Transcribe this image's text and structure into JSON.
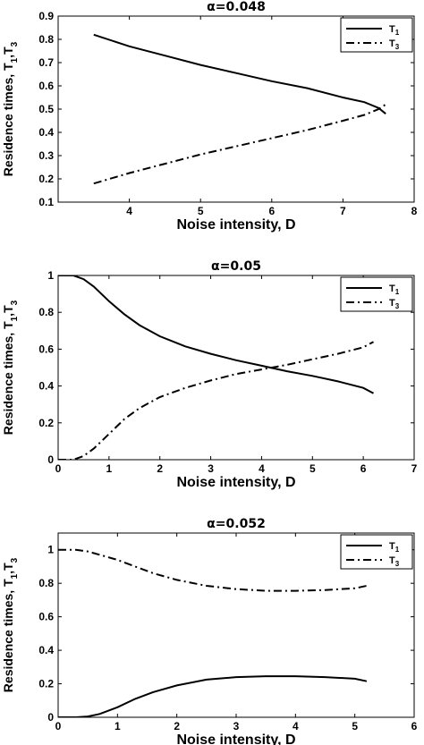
{
  "chart_data": [
    {
      "type": "line",
      "title": "α=0.048",
      "xlabel": "Noise intensity, D",
      "ylabel": "Residence times, T",
      "ylabel_subscripts": [
        "1",
        "3"
      ],
      "xlim": [
        3,
        8
      ],
      "ylim": [
        0.1,
        0.9
      ],
      "xticks": [
        4,
        5,
        6,
        7,
        8
      ],
      "yticks": [
        0.1,
        0.2,
        0.3,
        0.4,
        0.5,
        0.6,
        0.7,
        0.8,
        0.9
      ],
      "ytick_labels": [
        "0.1",
        "0.2",
        "0.3",
        "0.4",
        "0.5",
        "0.6",
        "0.7",
        "0.8",
        "0.9"
      ],
      "legend_position": "top-right",
      "series": [
        {
          "name": "T",
          "sub": "1",
          "style": "solid",
          "x": [
            3.5,
            4.0,
            4.5,
            5.0,
            5.5,
            6.0,
            6.5,
            7.0,
            7.3,
            7.5,
            7.6
          ],
          "y": [
            0.82,
            0.77,
            0.73,
            0.69,
            0.655,
            0.62,
            0.59,
            0.55,
            0.53,
            0.505,
            0.48
          ]
        },
        {
          "name": "T",
          "sub": "3",
          "style": "dashdot",
          "x": [
            3.5,
            4.0,
            4.5,
            5.0,
            5.5,
            6.0,
            6.5,
            7.0,
            7.3,
            7.5,
            7.6
          ],
          "y": [
            0.18,
            0.225,
            0.265,
            0.305,
            0.34,
            0.375,
            0.41,
            0.45,
            0.475,
            0.5,
            0.52
          ]
        }
      ]
    },
    {
      "type": "line",
      "title": "α=0.05",
      "xlabel": "Noise intensity, D",
      "ylabel": "Residence times, T",
      "ylabel_subscripts": [
        "1",
        "3"
      ],
      "xlim": [
        0,
        7
      ],
      "ylim": [
        0,
        1
      ],
      "xticks": [
        0,
        1,
        2,
        3,
        4,
        5,
        6,
        7
      ],
      "yticks": [
        0,
        0.2,
        0.4,
        0.6,
        0.8,
        1
      ],
      "ytick_labels": [
        "0",
        "0.2",
        "0.4",
        "0.6",
        "0.8",
        "1"
      ],
      "legend_position": "top-right",
      "series": [
        {
          "name": "T",
          "sub": "1",
          "style": "solid",
          "x": [
            0.0,
            0.3,
            0.5,
            0.7,
            1.0,
            1.3,
            1.6,
            2.0,
            2.5,
            3.0,
            3.5,
            4.0,
            4.5,
            5.0,
            5.5,
            6.0,
            6.2
          ],
          "y": [
            1.0,
            1.0,
            0.98,
            0.94,
            0.86,
            0.79,
            0.73,
            0.67,
            0.615,
            0.575,
            0.54,
            0.51,
            0.48,
            0.455,
            0.425,
            0.39,
            0.36
          ]
        },
        {
          "name": "T",
          "sub": "3",
          "style": "dashdot",
          "x": [
            0.0,
            0.3,
            0.5,
            0.7,
            1.0,
            1.3,
            1.6,
            2.0,
            2.5,
            3.0,
            3.5,
            4.0,
            4.5,
            5.0,
            5.5,
            6.0,
            6.2
          ],
          "y": [
            0.0,
            0.0,
            0.02,
            0.06,
            0.14,
            0.22,
            0.28,
            0.34,
            0.39,
            0.43,
            0.465,
            0.49,
            0.515,
            0.545,
            0.575,
            0.61,
            0.64
          ]
        }
      ]
    },
    {
      "type": "line",
      "title": "α=0.052",
      "xlabel": "Noise intensity, D",
      "ylabel": "Residence times, T",
      "ylabel_subscripts": [
        "1",
        "3"
      ],
      "xlim": [
        0,
        6
      ],
      "ylim": [
        0,
        1.1
      ],
      "xticks": [
        0,
        1,
        2,
        3,
        4,
        5,
        6
      ],
      "yticks": [
        0,
        0.2,
        0.4,
        0.6,
        0.8,
        1
      ],
      "ytick_labels": [
        "0",
        "0.2",
        "0.4",
        "0.6",
        "0.8",
        "1"
      ],
      "legend_position": "top-right",
      "series": [
        {
          "name": "T",
          "sub": "1",
          "style": "solid",
          "x": [
            0.0,
            0.3,
            0.5,
            0.7,
            1.0,
            1.3,
            1.6,
            2.0,
            2.5,
            3.0,
            3.5,
            4.0,
            4.5,
            5.0,
            5.2
          ],
          "y": [
            0.0,
            0.0,
            0.005,
            0.02,
            0.06,
            0.11,
            0.15,
            0.19,
            0.225,
            0.24,
            0.245,
            0.245,
            0.24,
            0.23,
            0.215
          ]
        },
        {
          "name": "T",
          "sub": "3",
          "style": "dashdot",
          "x": [
            0.0,
            0.3,
            0.5,
            0.7,
            1.0,
            1.3,
            1.6,
            2.0,
            2.5,
            3.0,
            3.5,
            4.0,
            4.5,
            5.0,
            5.2
          ],
          "y": [
            1.0,
            1.0,
            0.99,
            0.97,
            0.94,
            0.9,
            0.86,
            0.82,
            0.785,
            0.765,
            0.755,
            0.755,
            0.76,
            0.77,
            0.785
          ]
        }
      ]
    }
  ]
}
